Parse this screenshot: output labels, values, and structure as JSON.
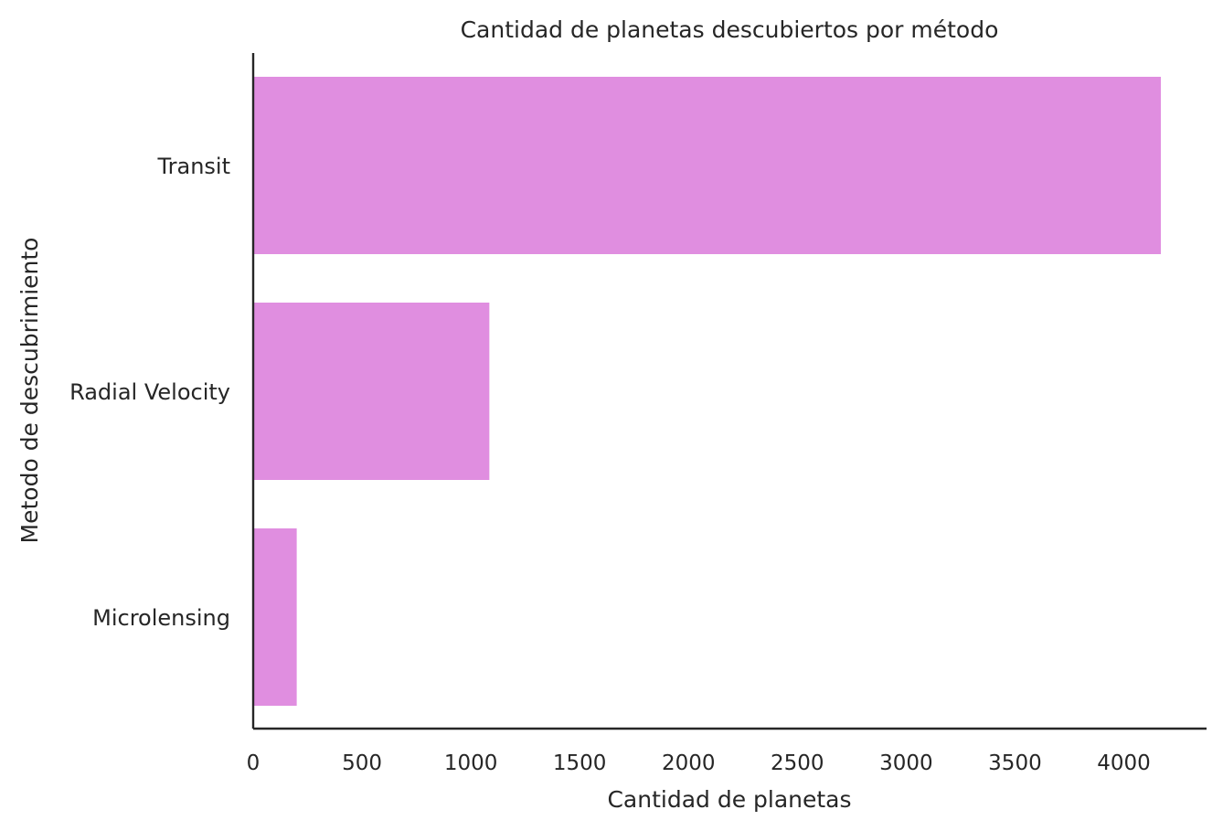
{
  "chart_data": {
    "type": "bar",
    "orientation": "horizontal",
    "title": "Cantidad de planetas descubiertos por método",
    "xlabel": "Cantidad de planetas",
    "ylabel": "Metodo de descubrimiento",
    "categories": [
      "Transit",
      "Radial Velocity",
      "Microlensing"
    ],
    "values": [
      4170,
      1085,
      200
    ],
    "xlim": [
      0,
      4380
    ],
    "xticks": [
      0,
      500,
      1000,
      1500,
      2000,
      2500,
      3000,
      3500,
      4000
    ],
    "xtick_labels": [
      "0",
      "500",
      "1000",
      "1500",
      "2000",
      "2500",
      "3000",
      "3500",
      "4000"
    ],
    "bar_color": "#e08ee0",
    "axis_color": "#262626",
    "grid": false,
    "legend": "none"
  }
}
